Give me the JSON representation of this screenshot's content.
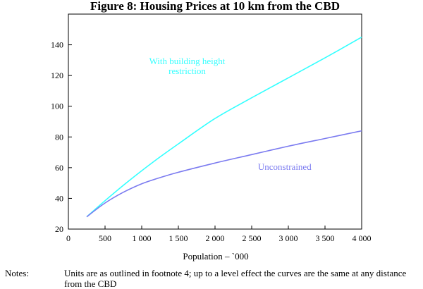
{
  "chart_data": {
    "type": "line",
    "title": "Figure 8: Housing Prices at 10 km from the CBD",
    "xlabel": "Population – `000",
    "ylabel": "",
    "xlim": [
      0,
      4000
    ],
    "ylim": [
      20,
      160
    ],
    "x_ticks": [
      0,
      500,
      1000,
      1500,
      2000,
      2500,
      3000,
      3500,
      4000
    ],
    "x_tick_labels": [
      "0",
      "500",
      "1 000",
      "1 500",
      "2 000",
      "2 500",
      "3 000",
      "3 500",
      "4 000"
    ],
    "y_ticks": [
      20,
      40,
      60,
      80,
      100,
      120,
      140
    ],
    "y_tick_labels": [
      "20",
      "40",
      "60",
      "80",
      "100",
      "120",
      "140"
    ],
    "grid": false,
    "series": [
      {
        "name": "With building height restriction",
        "label_lines": [
          "With building height",
          "restriction"
        ],
        "color": "#33ffff",
        "x": [
          250,
          500,
          750,
          1000,
          1250,
          1500,
          2000,
          2500,
          3000,
          3500,
          4000
        ],
        "y": [
          28,
          38.5,
          48.5,
          58,
          67,
          75.5,
          92,
          105.5,
          118.5,
          131.5,
          145
        ]
      },
      {
        "name": "Unconstrained",
        "label_lines": [
          "Unconstrained"
        ],
        "color": "#7b7bf0",
        "x": [
          250,
          500,
          750,
          1000,
          1250,
          1500,
          2000,
          2500,
          3000,
          3500,
          4000
        ],
        "y": [
          28,
          37,
          44,
          49.5,
          53.5,
          57,
          63,
          68.5,
          74,
          79,
          84
        ]
      }
    ]
  },
  "notes": {
    "label": "Notes:",
    "text": "Units are as outlined in footnote 4; up to a level effect the curves are the same at any distance from the CBD"
  }
}
